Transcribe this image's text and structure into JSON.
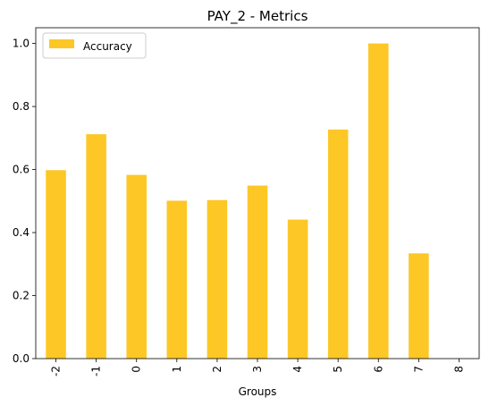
{
  "chart_data": {
    "type": "bar",
    "title": "PAY_2 - Metrics",
    "xlabel": "Groups",
    "ylabel": "",
    "categories": [
      "-2",
      "-1",
      "0",
      "1",
      "2",
      "3",
      "4",
      "5",
      "6",
      "7",
      "8"
    ],
    "series": [
      {
        "name": "Accuracy",
        "values": [
          0.598,
          0.712,
          0.583,
          0.501,
          0.503,
          0.549,
          0.441,
          0.727,
          1.0,
          0.334,
          0.0
        ]
      }
    ],
    "ylim": [
      0,
      1.05
    ],
    "yticks": [
      "0.0",
      "0.2",
      "0.4",
      "0.6",
      "0.8",
      "1.0"
    ],
    "grid": false,
    "legend_position": "top-left",
    "colors": {
      "bar": "#fdc725",
      "axis": "#000000",
      "background": "#ffffff"
    }
  }
}
